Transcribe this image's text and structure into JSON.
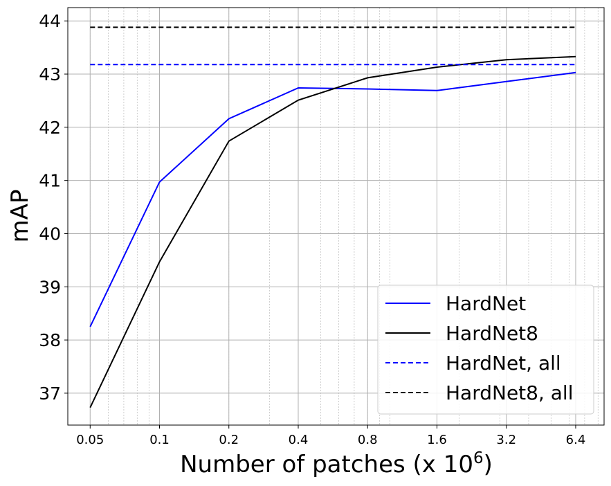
{
  "chart_data": {
    "type": "line",
    "xlabel": "Number of patches (x 10",
    "xlabel_superscript": "6",
    "xlabel_suffix": ")",
    "ylabel": "mAP",
    "x_scale": "log2",
    "x": [
      0.05,
      0.1,
      0.2,
      0.4,
      0.8,
      1.6,
      3.2,
      6.4
    ],
    "x_tick_labels": [
      "0.05",
      "0.1",
      "0.2",
      "0.4",
      "0.8",
      "1.6",
      "3.2",
      "6.4"
    ],
    "xlim": [
      0.04,
      8.5
    ],
    "ylim": [
      36.4,
      44.25
    ],
    "y_ticks": [
      37,
      38,
      39,
      40,
      41,
      42,
      43,
      44
    ],
    "grid": true,
    "minor_grid": true,
    "legend_position": "lower-right",
    "series": [
      {
        "name": "HardNet",
        "color": "#0000ff",
        "style": "solid",
        "values": [
          38.25,
          40.97,
          42.16,
          42.74,
          42.72,
          42.69,
          42.86,
          43.03
        ]
      },
      {
        "name": "HardNet8",
        "color": "#000000",
        "style": "solid",
        "values": [
          36.73,
          39.47,
          41.74,
          42.51,
          42.93,
          43.13,
          43.27,
          43.33
        ]
      },
      {
        "name": "HardNet, all",
        "color": "#0000ff",
        "style": "dashed",
        "values": [
          43.18,
          43.18,
          43.18,
          43.18,
          43.18,
          43.18,
          43.18,
          43.18
        ]
      },
      {
        "name": "HardNet8, all",
        "color": "#000000",
        "style": "dashed",
        "values": [
          43.88,
          43.88,
          43.88,
          43.88,
          43.88,
          43.88,
          43.88,
          43.88
        ]
      }
    ]
  }
}
